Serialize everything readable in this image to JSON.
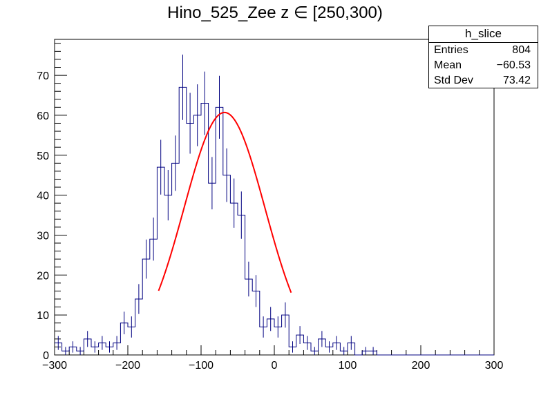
{
  "chart_data": {
    "type": "histogram",
    "title": "Hino_525_Zee z  ∈ [250,300)",
    "xlabel": "",
    "ylabel": "",
    "xlim": [
      -300,
      300
    ],
    "ylim": [
      0,
      79
    ],
    "bin_width": 10,
    "x_ticks": [
      "−300",
      "−200",
      "−100",
      "0",
      "100",
      "200",
      "300"
    ],
    "x_tick_values": [
      -300,
      -200,
      -100,
      0,
      100,
      200,
      300
    ],
    "y_ticks": [
      "0",
      "10",
      "20",
      "30",
      "40",
      "50",
      "60",
      "70"
    ],
    "y_tick_values": [
      0,
      10,
      20,
      30,
      40,
      50,
      60,
      70
    ],
    "series": [
      {
        "x": [
          -295,
          -285,
          -275,
          -265,
          -255,
          -245,
          -235,
          -225,
          -215,
          -205,
          -195,
          -185,
          -175,
          -165,
          -155,
          -145,
          -135,
          -125,
          -115,
          -105,
          -95,
          -85,
          -75,
          -65,
          -55,
          -45,
          -35,
          -25,
          -15,
          -5,
          5,
          15,
          25,
          35,
          45,
          55,
          65,
          75,
          85,
          95,
          105,
          115,
          125,
          135,
          145,
          155,
          165,
          175,
          185,
          195,
          205,
          215,
          225,
          235,
          245,
          255,
          265,
          275,
          285,
          295
        ],
        "values": [
          3,
          1,
          2,
          1,
          4,
          2,
          3,
          2,
          3,
          8,
          7,
          14,
          24,
          29,
          47,
          40,
          48,
          67,
          58,
          60,
          63,
          43,
          62,
          45,
          38,
          35,
          19,
          16,
          7,
          9,
          7,
          10,
          2,
          5,
          3,
          1,
          4,
          2,
          3,
          1,
          3,
          0,
          1,
          1,
          0,
          0,
          0,
          0,
          0,
          0,
          0,
          0,
          0,
          0,
          0,
          0,
          0,
          0,
          0,
          0
        ],
        "color": "#000080"
      }
    ],
    "fit": {
      "type": "gaussian",
      "amplitude": 60.7,
      "mean": -68,
      "sigma": 55.2,
      "range": [
        -158,
        23
      ],
      "color": "#ff0000"
    },
    "stats": {
      "name": "h_slice",
      "entries_label": "Entries",
      "entries": "804",
      "mean_label": "Mean",
      "mean": "−60.53",
      "stddev_label": "Std Dev",
      "stddev": "73.42"
    },
    "grid": false,
    "legend": "top-right"
  }
}
